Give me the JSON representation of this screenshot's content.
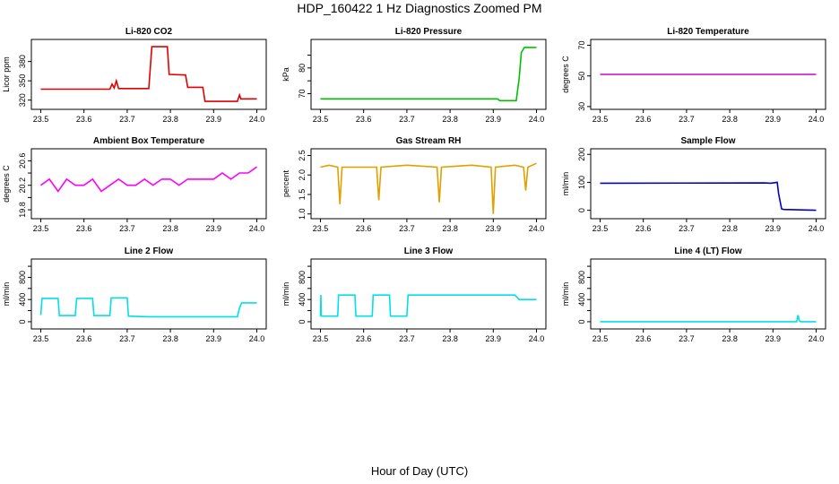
{
  "figure": {
    "title": "HDP_160422  1 Hz Diagnostics Zoomed PM",
    "xlabel": "Hour of Day (UTC)"
  },
  "chart_data": [
    {
      "type": "line",
      "title": "Li-820 CO2",
      "ylabel": "Licor ppm",
      "color": "#e00000",
      "xlim": [
        23.5,
        24.0
      ],
      "ylim": [
        310,
        410
      ],
      "xticks": [
        23.5,
        23.6,
        23.7,
        23.8,
        23.9,
        24.0
      ],
      "xtick_labels": [
        "23.5",
        "23.6",
        "23.7",
        "23.8",
        "23.9",
        "24.0"
      ],
      "yticks": [
        320,
        350,
        380
      ],
      "ytick_labels": [
        "320",
        "350",
        "380"
      ],
      "series": [
        {
          "x": [
            23.5,
            23.66,
            23.665,
            23.67,
            23.675,
            23.68,
            23.75,
            23.757,
            23.793,
            23.797,
            23.835,
            23.84,
            23.875,
            23.88,
            23.955,
            23.96,
            23.963,
            24.0
          ],
          "y": [
            337,
            337,
            345,
            339,
            350,
            338,
            338,
            403,
            403,
            360,
            359,
            340,
            340,
            318,
            318,
            328,
            322,
            322
          ]
        }
      ]
    },
    {
      "type": "line",
      "title": "Li-820 Pressure",
      "ylabel": "kPa",
      "color": "#00c000",
      "xlim": [
        23.5,
        24.0
      ],
      "ylim": [
        65,
        90
      ],
      "xticks": [
        23.5,
        23.6,
        23.7,
        23.8,
        23.9,
        24.0
      ],
      "xtick_labels": [
        "23.5",
        "23.6",
        "23.7",
        "23.8",
        "23.9",
        "24.0"
      ],
      "yticks": [
        70,
        75,
        80,
        85
      ],
      "ytick_labels": [
        "70",
        "",
        "80",
        ""
      ],
      "series": [
        {
          "x": [
            23.5,
            23.91,
            23.915,
            23.953,
            23.96,
            23.965,
            23.972,
            24.0
          ],
          "y": [
            68,
            68,
            67.3,
            67.3,
            76,
            86,
            88,
            88
          ]
        }
      ]
    },
    {
      "type": "line",
      "title": "Li-820 Temperature",
      "ylabel": "degrees C",
      "color": "#d000d0",
      "xlim": [
        23.5,
        24.0
      ],
      "ylim": [
        30,
        72
      ],
      "xticks": [
        23.5,
        23.6,
        23.7,
        23.8,
        23.9,
        24.0
      ],
      "xtick_labels": [
        "23.5",
        "23.6",
        "23.7",
        "23.8",
        "23.9",
        "24.0"
      ],
      "yticks": [
        30,
        50,
        70
      ],
      "ytick_labels": [
        "30",
        "50",
        "70"
      ],
      "series": [
        {
          "x": [
            23.5,
            24.0
          ],
          "y": [
            51,
            51
          ]
        }
      ]
    },
    {
      "type": "line",
      "title": "Ambient Box Temperature",
      "ylabel": "degrees C",
      "color": "#ff00ff",
      "xlim": [
        23.5,
        24.0
      ],
      "ylim": [
        19.7,
        20.75
      ],
      "xticks": [
        23.5,
        23.6,
        23.7,
        23.8,
        23.9,
        24.0
      ],
      "xtick_labels": [
        "23.5",
        "23.6",
        "23.7",
        "23.8",
        "23.9",
        "24.0"
      ],
      "yticks": [
        19.8,
        20.0,
        20.2,
        20.4,
        20.6
      ],
      "ytick_labels": [
        "19.8",
        "",
        "20.2",
        "",
        "20.6"
      ],
      "series": [
        {
          "x": [
            23.5,
            23.52,
            23.54,
            23.56,
            23.58,
            23.6,
            23.62,
            23.64,
            23.66,
            23.68,
            23.7,
            23.72,
            23.74,
            23.76,
            23.78,
            23.8,
            23.82,
            23.84,
            23.86,
            23.88,
            23.9,
            23.92,
            23.94,
            23.96,
            23.98,
            24.0
          ],
          "y": [
            20.2,
            20.3,
            20.1,
            20.3,
            20.2,
            20.2,
            20.3,
            20.1,
            20.2,
            20.3,
            20.2,
            20.2,
            20.3,
            20.2,
            20.3,
            20.3,
            20.2,
            20.3,
            20.3,
            20.3,
            20.3,
            20.4,
            20.3,
            20.4,
            20.4,
            20.5
          ]
        }
      ]
    },
    {
      "type": "line",
      "title": "Gas Stream RH",
      "ylabel": "percent",
      "color": "#e0a000",
      "xlim": [
        23.5,
        24.0
      ],
      "ylim": [
        0.95,
        2.6
      ],
      "xticks": [
        23.5,
        23.6,
        23.7,
        23.8,
        23.9,
        24.0
      ],
      "xtick_labels": [
        "23.5",
        "23.6",
        "23.7",
        "23.8",
        "23.9",
        "24.0"
      ],
      "yticks": [
        1.0,
        1.5,
        2.0,
        2.5
      ],
      "ytick_labels": [
        "1.0",
        "1.5",
        "2.0",
        "2.5"
      ],
      "series": [
        {
          "x": [
            23.5,
            23.52,
            23.54,
            23.545,
            23.55,
            23.6,
            23.63,
            23.635,
            23.64,
            23.7,
            23.77,
            23.775,
            23.78,
            23.85,
            23.895,
            23.9,
            23.905,
            23.95,
            23.97,
            23.975,
            23.98,
            24.0
          ],
          "y": [
            2.2,
            2.25,
            2.2,
            1.25,
            2.2,
            2.2,
            2.2,
            1.35,
            2.2,
            2.25,
            2.2,
            1.3,
            2.2,
            2.25,
            2.2,
            1.0,
            2.2,
            2.25,
            2.2,
            1.6,
            2.2,
            2.3
          ]
        }
      ]
    },
    {
      "type": "line",
      "title": "Sample Flow",
      "ylabel": "ml/min",
      "color": "#0000c8",
      "xlim": [
        23.5,
        24.0
      ],
      "ylim": [
        -20,
        210
      ],
      "xticks": [
        23.5,
        23.6,
        23.7,
        23.8,
        23.9,
        24.0
      ],
      "xtick_labels": [
        "23.5",
        "23.6",
        "23.7",
        "23.8",
        "23.9",
        "24.0"
      ],
      "yticks": [
        0,
        100,
        200
      ],
      "ytick_labels": [
        "0",
        "100",
        "200"
      ],
      "series": [
        {
          "x": [
            23.5,
            23.88,
            23.895,
            23.91,
            23.913,
            23.92,
            23.925,
            24.0
          ],
          "y": [
            97,
            98,
            97,
            100,
            60,
            5,
            3,
            0
          ]
        }
      ]
    },
    {
      "type": "line",
      "title": "Line 2 Flow",
      "ylabel": "ml/min",
      "color": "#00e0e8",
      "xlim": [
        23.5,
        24.0
      ],
      "ylim": [
        -80,
        1080
      ],
      "xticks": [
        23.5,
        23.6,
        23.7,
        23.8,
        23.9,
        24.0
      ],
      "xtick_labels": [
        "23.5",
        "23.6",
        "23.7",
        "23.8",
        "23.9",
        "24.0"
      ],
      "yticks": [
        0,
        200,
        400,
        600,
        800,
        1000
      ],
      "ytick_labels": [
        "0",
        "",
        "400",
        "",
        "800",
        ""
      ],
      "series": [
        {
          "x": [
            23.5,
            23.503,
            23.54,
            23.543,
            23.58,
            23.583,
            23.62,
            23.623,
            23.66,
            23.663,
            23.7,
            23.703,
            23.75,
            23.955,
            23.96,
            23.965,
            24.0
          ],
          "y": [
            120,
            420,
            420,
            110,
            110,
            420,
            420,
            110,
            110,
            430,
            430,
            100,
            90,
            90,
            250,
            340,
            340
          ]
        }
      ]
    },
    {
      "type": "line",
      "title": "Line 3 Flow",
      "ylabel": "ml/min",
      "color": "#00e0e8",
      "xlim": [
        23.5,
        24.0
      ],
      "ylim": [
        -80,
        1080
      ],
      "xticks": [
        23.5,
        23.6,
        23.7,
        23.8,
        23.9,
        24.0
      ],
      "xtick_labels": [
        "23.5",
        "23.6",
        "23.7",
        "23.8",
        "23.9",
        "24.0"
      ],
      "yticks": [
        0,
        200,
        400,
        600,
        800,
        1000
      ],
      "ytick_labels": [
        "0",
        "",
        "400",
        "",
        "800",
        ""
      ],
      "series": [
        {
          "x": [
            23.5,
            23.501,
            23.502,
            23.54,
            23.542,
            23.58,
            23.582,
            23.62,
            23.622,
            23.66,
            23.662,
            23.7,
            23.703,
            23.95,
            23.96,
            24.0
          ],
          "y": [
            100,
            480,
            100,
            100,
            480,
            480,
            100,
            100,
            480,
            480,
            100,
            100,
            480,
            480,
            400,
            400
          ]
        }
      ]
    },
    {
      "type": "line",
      "title": "Line 4 (LT) Flow",
      "ylabel": "ml/min",
      "color": "#00e0e8",
      "xlim": [
        23.5,
        24.0
      ],
      "ylim": [
        -80,
        1080
      ],
      "xticks": [
        23.5,
        23.6,
        23.7,
        23.8,
        23.9,
        24.0
      ],
      "xtick_labels": [
        "23.5",
        "23.6",
        "23.7",
        "23.8",
        "23.9",
        "24.0"
      ],
      "yticks": [
        0,
        200,
        400,
        600,
        800,
        1000
      ],
      "ytick_labels": [
        "0",
        "",
        "400",
        "",
        "800",
        ""
      ],
      "series": [
        {
          "x": [
            23.5,
            23.955,
            23.958,
            23.961,
            23.964,
            24.0
          ],
          "y": [
            0,
            0,
            120,
            20,
            0,
            0
          ]
        }
      ]
    }
  ]
}
